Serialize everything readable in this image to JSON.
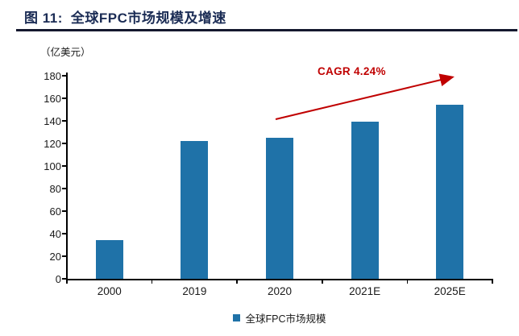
{
  "figure": {
    "label": "图 11:",
    "title": "全球FPC市场规模及增速"
  },
  "chart_data": {
    "type": "bar",
    "title": "全球FPC市场规模及增速",
    "unit_label": "（亿美元）",
    "categories": [
      "2000",
      "2019",
      "2020",
      "2021E",
      "2025E"
    ],
    "values": [
      34,
      122,
      125,
      139,
      154
    ],
    "xlabel": "",
    "ylabel": "亿美元",
    "ylim": [
      0,
      180
    ],
    "ytick_step": 20,
    "grid": false,
    "legend": {
      "label": "全球FPC市场规模",
      "position": "bottom"
    },
    "annotation": {
      "text": "CAGR 4.24%"
    }
  },
  "colors": {
    "bar": "#1f72a8",
    "annotation_red": "#c00000",
    "title_navy": "#1b2c55",
    "axis": "#000000"
  }
}
